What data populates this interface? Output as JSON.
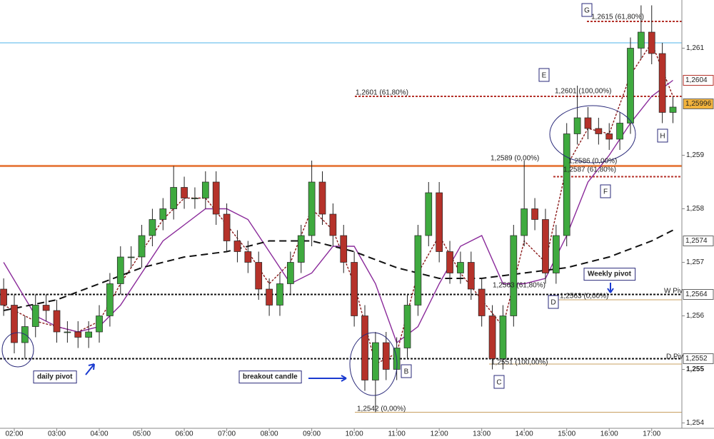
{
  "chart_data": {
    "type": "candlestick",
    "xlim": [
      1.664,
      17.71
    ],
    "ylim": [
      1.2539,
      1.2619
    ],
    "xticks": [
      {
        "value": 2,
        "label": "02:00"
      },
      {
        "value": 3,
        "label": "03:00"
      },
      {
        "value": 4,
        "label": "04:00"
      },
      {
        "value": 5,
        "label": "05:00"
      },
      {
        "value": 6,
        "label": "06:00"
      },
      {
        "value": 7,
        "label": "07:00"
      },
      {
        "value": 8,
        "label": "08:00"
      },
      {
        "value": 9,
        "label": "09:00"
      },
      {
        "value": 10,
        "label": "10:00"
      },
      {
        "value": 11,
        "label": "11:00"
      },
      {
        "value": 12,
        "label": "12:00"
      },
      {
        "value": 13,
        "label": "13:00"
      },
      {
        "value": 14,
        "label": "14:00"
      },
      {
        "value": 15,
        "label": "15:00"
      },
      {
        "value": 16,
        "label": "16:00"
      },
      {
        "value": 17,
        "label": "17:00"
      }
    ],
    "yticks": [
      {
        "value": 1.254,
        "label": "1,254"
      },
      {
        "value": 1.255,
        "label": "1,255"
      },
      {
        "value": 1.256,
        "label": "1,256"
      },
      {
        "value": 1.257,
        "label": "1,257"
      },
      {
        "value": 1.258,
        "label": "1,258"
      },
      {
        "value": 1.259,
        "label": "1,259"
      },
      {
        "value": 1.261,
        "label": "1,261"
      }
    ],
    "up_color": "#3faa3f",
    "down_color": "#b5322a",
    "x": [
      1.75,
      2,
      2.25,
      2.5,
      2.75,
      3,
      3.25,
      3.5,
      3.75,
      4,
      4.25,
      4.5,
      4.75,
      5,
      5.25,
      5.5,
      5.75,
      6,
      6.25,
      6.5,
      6.75,
      7,
      7.25,
      7.5,
      7.75,
      8,
      8.25,
      8.5,
      8.75,
      9,
      9.25,
      9.5,
      9.75,
      10,
      10.25,
      10.5,
      10.75,
      11,
      11.25,
      11.5,
      11.75,
      12,
      12.25,
      12.5,
      12.75,
      13,
      13.25,
      13.5,
      13.75,
      14,
      14.25,
      14.5,
      14.75,
      15,
      15.25,
      15.5,
      15.75,
      16,
      16.25,
      16.5,
      16.75,
      17,
      17.25,
      17.5
    ],
    "open": [
      1.2565,
      1.2562,
      1.2555,
      1.2558,
      1.2562,
      1.2561,
      1.2557,
      1.2557,
      1.2556,
      1.2557,
      1.256,
      1.2566,
      1.2571,
      1.2571,
      1.2575,
      1.2578,
      1.258,
      1.2584,
      1.2582,
      1.2582,
      1.2585,
      1.2579,
      1.2574,
      1.2572,
      1.257,
      1.2565,
      1.2562,
      1.2566,
      1.257,
      1.2575,
      1.2585,
      1.2579,
      1.2575,
      1.257,
      1.256,
      1.2548,
      1.2555,
      1.255,
      1.2554,
      1.2562,
      1.2575,
      1.2583,
      1.2572,
      1.2568,
      1.257,
      1.2565,
      1.256,
      1.2552,
      1.256,
      1.2575,
      1.258,
      1.2578,
      1.2568,
      1.2575,
      1.2594,
      1.2597,
      1.2595,
      1.2594,
      1.2593,
      1.2596,
      1.261,
      1.2613,
      1.2609,
      1.2598
    ],
    "high": [
      1.2567,
      1.2564,
      1.256,
      1.2564,
      1.2564,
      1.2563,
      1.2559,
      1.2559,
      1.2559,
      1.2562,
      1.2568,
      1.2573,
      1.2573,
      1.2577,
      1.258,
      1.2582,
      1.2588,
      1.2586,
      1.2584,
      1.2587,
      1.2587,
      1.2581,
      1.2576,
      1.2574,
      1.2572,
      1.2567,
      1.2568,
      1.2572,
      1.2577,
      1.2589,
      1.2587,
      1.2581,
      1.2577,
      1.2572,
      1.2562,
      1.2557,
      1.2557,
      1.2556,
      1.2564,
      1.2577,
      1.2585,
      1.2585,
      1.2574,
      1.2572,
      1.2572,
      1.2567,
      1.2562,
      1.2562,
      1.2577,
      1.2589,
      1.2582,
      1.258,
      1.2577,
      1.2596,
      1.2603,
      1.2599,
      1.2597,
      1.2596,
      1.2598,
      1.2612,
      1.2618,
      1.2618,
      1.2611,
      1.2601
    ],
    "low": [
      1.256,
      1.2553,
      1.2552,
      1.2556,
      1.2559,
      1.2555,
      1.2555,
      1.2554,
      1.2554,
      1.2555,
      1.2558,
      1.2564,
      1.2569,
      1.2569,
      1.2573,
      1.2576,
      1.2578,
      1.258,
      1.258,
      1.258,
      1.2577,
      1.2572,
      1.257,
      1.2568,
      1.2563,
      1.256,
      1.256,
      1.2564,
      1.2568,
      1.2573,
      1.2577,
      1.2573,
      1.2568,
      1.2558,
      1.2546,
      1.2542,
      1.2548,
      1.2548,
      1.2552,
      1.256,
      1.2573,
      1.257,
      1.2566,
      1.2566,
      1.2563,
      1.2558,
      1.255,
      1.255,
      1.2558,
      1.2573,
      1.2576,
      1.2566,
      1.2566,
      1.2573,
      1.2592,
      1.2593,
      1.2592,
      1.2591,
      1.2591,
      1.2594,
      1.2608,
      1.2607,
      1.2596,
      1.2596
    ],
    "close": [
      1.2562,
      1.2555,
      1.2558,
      1.2562,
      1.2561,
      1.2557,
      1.2557,
      1.2556,
      1.2557,
      1.256,
      1.2566,
      1.2571,
      1.2571,
      1.2575,
      1.2578,
      1.258,
      1.2584,
      1.2582,
      1.2582,
      1.2585,
      1.2579,
      1.2574,
      1.2572,
      1.257,
      1.2565,
      1.2562,
      1.2566,
      1.257,
      1.2575,
      1.2585,
      1.2579,
      1.2575,
      1.257,
      1.256,
      1.2548,
      1.2555,
      1.255,
      1.2554,
      1.2562,
      1.2575,
      1.2583,
      1.2572,
      1.2568,
      1.257,
      1.2565,
      1.256,
      1.2552,
      1.256,
      1.2575,
      1.258,
      1.2578,
      1.2568,
      1.2575,
      1.2594,
      1.2597,
      1.2595,
      1.2594,
      1.2593,
      1.2596,
      1.261,
      1.2613,
      1.2609,
      1.2598,
      1.2599
    ],
    "moving_averages": [
      {
        "color": "#8b1a1a",
        "style": "dotted",
        "x": [
          1.75,
          2.5,
          3,
          3.5,
          4,
          4.5,
          5,
          5.5,
          6,
          6.5,
          7,
          7.5,
          8,
          8.5,
          9,
          9.5,
          10,
          10.5,
          11,
          11.5,
          12,
          12.5,
          13,
          13.5,
          14,
          14.5,
          15,
          15.5,
          16,
          16.5,
          17,
          17.5
        ],
        "values": [
          1.2562,
          1.2559,
          1.2558,
          1.2557,
          1.2559,
          1.2566,
          1.2572,
          1.2578,
          1.2582,
          1.2582,
          1.2577,
          1.2572,
          1.2566,
          1.257,
          1.258,
          1.2576,
          1.2566,
          1.2551,
          1.2553,
          1.2568,
          1.2575,
          1.2568,
          1.2563,
          1.2558,
          1.2574,
          1.257,
          1.2588,
          1.2595,
          1.2594,
          1.2605,
          1.2611,
          1.2601
        ]
      },
      {
        "color": "#8a2a9a",
        "style": "solid",
        "x": [
          1.75,
          2.5,
          3,
          3.5,
          4,
          4.5,
          5,
          5.5,
          6,
          6.5,
          7,
          7.5,
          8,
          8.5,
          9,
          9.5,
          10,
          10.5,
          11,
          11.5,
          12,
          12.5,
          13,
          13.5,
          14,
          14.5,
          15,
          15.5,
          16,
          16.5,
          17,
          17.5
        ],
        "values": [
          1.257,
          1.256,
          1.2558,
          1.2557,
          1.2558,
          1.2562,
          1.2568,
          1.2574,
          1.2577,
          1.258,
          1.258,
          1.2578,
          1.2572,
          1.2566,
          1.2568,
          1.2573,
          1.2573,
          1.2566,
          1.2555,
          1.2558,
          1.2566,
          1.2573,
          1.2575,
          1.2566,
          1.2566,
          1.2567,
          1.2575,
          1.2585,
          1.259,
          1.2596,
          1.2601,
          1.2604
        ]
      },
      {
        "color": "#111111",
        "style": "dashed",
        "x": [
          1.75,
          3,
          4,
          5,
          6,
          7,
          8,
          9,
          10,
          11,
          12,
          13,
          14,
          15,
          16,
          17,
          17.5
        ],
        "values": [
          1.2561,
          1.2563,
          1.2566,
          1.2569,
          1.2571,
          1.2572,
          1.2574,
          1.2574,
          1.2572,
          1.2569,
          1.2567,
          1.2567,
          1.2568,
          1.2569,
          1.2571,
          1.2574,
          1.2576
        ]
      }
    ],
    "levels": [
      {
        "value": 1.2611,
        "color": "#4fb3e8",
        "style": "solid"
      },
      {
        "value": 1.2588,
        "color": "#e8824a",
        "style": "thick"
      },
      {
        "value": 1.2615,
        "color": "#b5322a",
        "style": "dotted"
      },
      {
        "value": 1.2601,
        "color": "#b5322a",
        "style": "dotted"
      },
      {
        "value": 1.2586,
        "color": "#b5322a",
        "style": "dotted"
      },
      {
        "value": 1.2564,
        "color": "#111111",
        "style": "dotted"
      },
      {
        "value": 1.2552,
        "color": "#111111",
        "style": "dotted"
      },
      {
        "value": 1.2542,
        "color": "#c8a060",
        "style": "thin"
      },
      {
        "value": 1.2563,
        "color": "#c8a060",
        "style": "thin"
      },
      {
        "value": 1.2551,
        "color": "#c8a060",
        "style": "thin"
      }
    ],
    "price_labels": [
      {
        "value": 1.2604,
        "label": "1,2604"
      },
      {
        "value": 1.25996,
        "label": "1,25996"
      },
      {
        "value": 1.2574,
        "label": "1,2574"
      },
      {
        "value": 1.2564,
        "label": "1,2564"
      },
      {
        "value": 1.2552,
        "label": "1,2552"
      }
    ],
    "fib_labels": [
      "1,2615 (61,80%)",
      "1,2601 (61,80%)",
      "1,2601 (100,00%)",
      "1,2589 (0,00%)",
      "1,2586 (0,00%)",
      "1,2587 (61,80%)",
      "1,2563 (61,80%)",
      "1,2563 (0,00%)",
      "1,2551 (100,00%)",
      "1,2542 (0,00%)"
    ],
    "points": [
      "G",
      "E",
      "F",
      "H",
      "D",
      "C",
      "B"
    ],
    "callouts": [
      "Weekly pivot",
      "daily pivot",
      "breakout candle",
      "W Piv",
      "D Piv"
    ]
  }
}
